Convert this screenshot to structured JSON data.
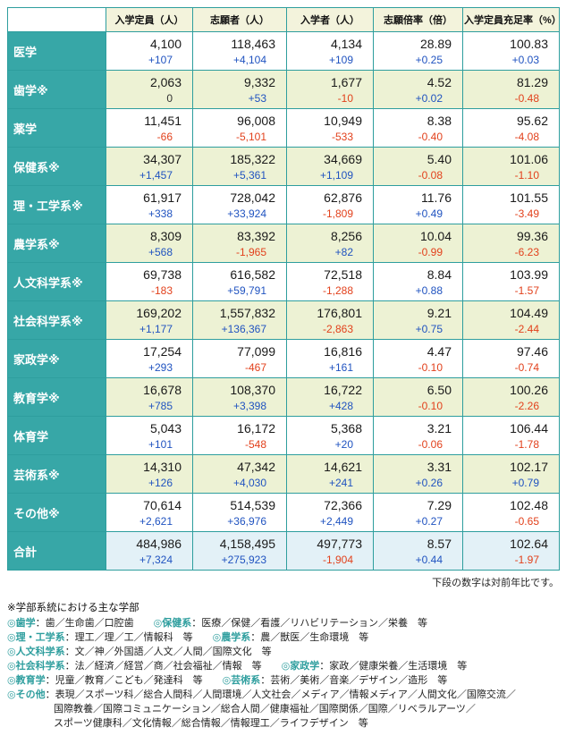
{
  "table": {
    "columns": [
      "入学定員（人）",
      "志願者（人）",
      "入学者（人）",
      "志願倍率（倍）",
      "入学定員充足率（%）"
    ],
    "rows": [
      {
        "label": "医学",
        "values": [
          "4,100",
          "118,463",
          "4,134",
          "28.89",
          "100.83"
        ],
        "changes": [
          "+107",
          "+4,104",
          "+109",
          "+0.25",
          "+0.03"
        ]
      },
      {
        "label": "歯学※",
        "values": [
          "2,063",
          "9,332",
          "1,677",
          "4.52",
          "81.29"
        ],
        "changes": [
          "0",
          "+53",
          "-10",
          "+0.02",
          "-0.48"
        ]
      },
      {
        "label": "薬学",
        "values": [
          "11,451",
          "96,008",
          "10,949",
          "8.38",
          "95.62"
        ],
        "changes": [
          "-66",
          "-5,101",
          "-533",
          "-0.40",
          "-4.08"
        ]
      },
      {
        "label": "保健系※",
        "values": [
          "34,307",
          "185,322",
          "34,669",
          "5.40",
          "101.06"
        ],
        "changes": [
          "+1,457",
          "+5,361",
          "+1,109",
          "-0.08",
          "-1.10"
        ]
      },
      {
        "label": "理・工学系※",
        "values": [
          "61,917",
          "728,042",
          "62,876",
          "11.76",
          "101.55"
        ],
        "changes": [
          "+338",
          "+33,924",
          "-1,809",
          "+0.49",
          "-3.49"
        ]
      },
      {
        "label": "農学系※",
        "values": [
          "8,309",
          "83,392",
          "8,256",
          "10.04",
          "99.36"
        ],
        "changes": [
          "+568",
          "-1,965",
          "+82",
          "-0.99",
          "-6.23"
        ]
      },
      {
        "label": "人文科学系※",
        "values": [
          "69,738",
          "616,582",
          "72,518",
          "8.84",
          "103.99"
        ],
        "changes": [
          "-183",
          "+59,791",
          "-1,288",
          "+0.88",
          "-1.57"
        ]
      },
      {
        "label": "社会科学系※",
        "values": [
          "169,202",
          "1,557,832",
          "176,801",
          "9.21",
          "104.49"
        ],
        "changes": [
          "+1,177",
          "+136,367",
          "-2,863",
          "+0.75",
          "-2.44"
        ]
      },
      {
        "label": "家政学※",
        "values": [
          "17,254",
          "77,099",
          "16,816",
          "4.47",
          "97.46"
        ],
        "changes": [
          "+293",
          "-467",
          "+161",
          "-0.10",
          "-0.74"
        ]
      },
      {
        "label": "教育学※",
        "values": [
          "16,678",
          "108,370",
          "16,722",
          "6.50",
          "100.26"
        ],
        "changes": [
          "+785",
          "+3,398",
          "+428",
          "-0.10",
          "-2.26"
        ]
      },
      {
        "label": "体育学",
        "values": [
          "5,043",
          "16,172",
          "5,368",
          "3.21",
          "106.44"
        ],
        "changes": [
          "+101",
          "-548",
          "+20",
          "-0.06",
          "-1.78"
        ]
      },
      {
        "label": "芸術系※",
        "values": [
          "14,310",
          "47,342",
          "14,621",
          "3.31",
          "102.17"
        ],
        "changes": [
          "+126",
          "+4,030",
          "+241",
          "+0.26",
          "+0.79"
        ]
      },
      {
        "label": "その他※",
        "values": [
          "70,614",
          "514,539",
          "72,366",
          "7.29",
          "102.48"
        ],
        "changes": [
          "+2,621",
          "+36,976",
          "+2,449",
          "+0.27",
          "-0.65"
        ]
      },
      {
        "label": "合計",
        "total": true,
        "values": [
          "484,986",
          "4,158,495",
          "497,773",
          "8.57",
          "102.64"
        ],
        "changes": [
          "+7,324",
          "+275,923",
          "-1,904",
          "+0.44",
          "-1.97"
        ]
      }
    ]
  },
  "note_below_table": "下段の数字は対前年比です。",
  "footnotes": {
    "title": "※学部系統における主な学部",
    "lines": [
      {
        "indent": false,
        "segments": [
          {
            "cat": "◎歯学"
          },
          {
            "text": "：歯／生命歯／口腔歯　　"
          },
          {
            "cat": "◎保健系"
          },
          {
            "text": "：医療／保健／看護／リハビリテーション／栄養　等"
          }
        ]
      },
      {
        "indent": false,
        "segments": [
          {
            "cat": "◎理・工学系"
          },
          {
            "text": "：理工／理／工／情報科　等　　"
          },
          {
            "cat": "◎農学系"
          },
          {
            "text": "：農／獣医／生命環境　等"
          }
        ]
      },
      {
        "indent": false,
        "segments": [
          {
            "cat": "◎人文科学系"
          },
          {
            "text": "：文／神／外国語／人文／人間／国際文化　等"
          }
        ]
      },
      {
        "indent": false,
        "segments": [
          {
            "cat": "◎社会科学系"
          },
          {
            "text": "：法／経済／経営／商／社会福祉／情報　等　　"
          },
          {
            "cat": "◎家政学"
          },
          {
            "text": "：家政／健康栄養／生活環境　等"
          }
        ]
      },
      {
        "indent": false,
        "segments": [
          {
            "cat": "◎教育学"
          },
          {
            "text": "：児童／教育／こども／発達科　等　　"
          },
          {
            "cat": "◎芸術系"
          },
          {
            "text": "：芸術／美術／音楽／デザイン／造形　等"
          }
        ]
      },
      {
        "indent": false,
        "segments": [
          {
            "cat": "◎その他"
          },
          {
            "text": "：表現／スポーツ科／総合人間科／人間環境／人文社会／メディア／情報メディア／人間文化／国際交流／"
          }
        ]
      },
      {
        "indent": true,
        "segments": [
          {
            "text": "国際教養／国際コミュニケーション／総合人間／健康福祉／国際関係／国際／リベラルアーツ／"
          }
        ]
      },
      {
        "indent": true,
        "segments": [
          {
            "text": "スポーツ健康科／文化情報／総合情報／情報理工／ライフデザイン　等"
          }
        ]
      }
    ]
  },
  "colors": {
    "teal": "#2E9E9E",
    "header_bg": "#F3F3DC",
    "alt_row_bg": "#EDF2D4",
    "total_row_bg": "#E3F1F7",
    "positive_change": "#2053C0",
    "negative_change": "#E2411C"
  }
}
